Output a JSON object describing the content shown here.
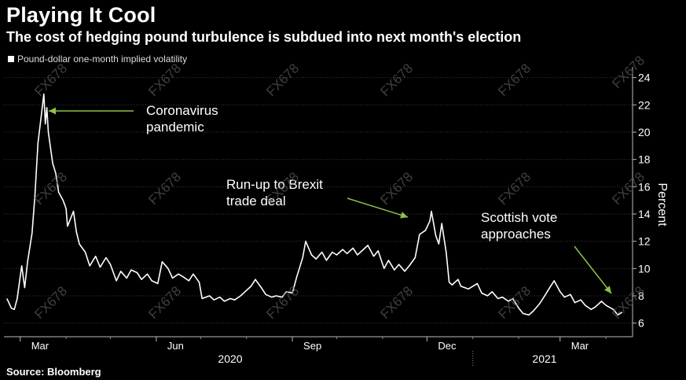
{
  "title": "Playing It Cool",
  "subtitle": "The cost of hedging pound turbulence is subdued into next month's election",
  "source": "Source: Bloomberg",
  "watermark": "FX678",
  "chart_data": {
    "type": "line",
    "title": "Playing It Cool",
    "subtitle": "The cost of hedging pound turbulence is subdued into next month's election",
    "ylabel": "Percent",
    "ylim": [
      5,
      24.5
    ],
    "yticks": [
      6,
      8,
      10,
      12,
      14,
      16,
      18,
      20,
      22,
      24
    ],
    "x_month_labels": [
      "Mar",
      "Jun",
      "Sep",
      "Dec",
      "Mar"
    ],
    "x_year_labels": [
      "2020",
      "2021"
    ],
    "grid": true,
    "legend": "top-left",
    "series": [
      {
        "name": "Pound-dollar one-month implied volatility",
        "color": "#ffffff",
        "points": [
          [
            "2020-02-21",
            7.8
          ],
          [
            "2020-02-24",
            7.1
          ],
          [
            "2020-02-26",
            7.0
          ],
          [
            "2020-02-28",
            7.8
          ],
          [
            "2020-03-02",
            10.2
          ],
          [
            "2020-03-04",
            8.6
          ],
          [
            "2020-03-06",
            10.5
          ],
          [
            "2020-03-09",
            12.6
          ],
          [
            "2020-03-11",
            15.4
          ],
          [
            "2020-03-13",
            19.2
          ],
          [
            "2020-03-15",
            21.0
          ],
          [
            "2020-03-17",
            22.8
          ],
          [
            "2020-03-18",
            20.6
          ],
          [
            "2020-03-19",
            21.8
          ],
          [
            "2020-03-20",
            20.0
          ],
          [
            "2020-03-23",
            17.7
          ],
          [
            "2020-03-25",
            17.0
          ],
          [
            "2020-03-27",
            15.6
          ],
          [
            "2020-03-30",
            15.0
          ],
          [
            "2020-04-01",
            14.4
          ],
          [
            "2020-04-02",
            13.1
          ],
          [
            "2020-04-06",
            14.2
          ],
          [
            "2020-04-08",
            12.7
          ],
          [
            "2020-04-10",
            11.8
          ],
          [
            "2020-04-14",
            11.2
          ],
          [
            "2020-04-17",
            10.2
          ],
          [
            "2020-04-21",
            10.9
          ],
          [
            "2020-04-24",
            10.1
          ],
          [
            "2020-04-28",
            10.8
          ],
          [
            "2020-05-01",
            10.3
          ],
          [
            "2020-05-05",
            9.1
          ],
          [
            "2020-05-08",
            9.8
          ],
          [
            "2020-05-12",
            9.3
          ],
          [
            "2020-05-15",
            9.9
          ],
          [
            "2020-05-19",
            9.7
          ],
          [
            "2020-05-22",
            9.2
          ],
          [
            "2020-05-26",
            9.6
          ],
          [
            "2020-05-29",
            9.1
          ],
          [
            "2020-06-02",
            8.9
          ],
          [
            "2020-06-05",
            10.5
          ],
          [
            "2020-06-09",
            10.0
          ],
          [
            "2020-06-12",
            9.3
          ],
          [
            "2020-06-16",
            9.6
          ],
          [
            "2020-06-19",
            9.4
          ],
          [
            "2020-06-23",
            9.1
          ],
          [
            "2020-06-26",
            9.6
          ],
          [
            "2020-06-30",
            9.0
          ],
          [
            "2020-07-02",
            7.8
          ],
          [
            "2020-07-07",
            8.0
          ],
          [
            "2020-07-10",
            7.7
          ],
          [
            "2020-07-14",
            7.9
          ],
          [
            "2020-07-17",
            7.6
          ],
          [
            "2020-07-21",
            7.8
          ],
          [
            "2020-07-24",
            7.7
          ],
          [
            "2020-07-28",
            8.0
          ],
          [
            "2020-07-31",
            8.3
          ],
          [
            "2020-08-04",
            8.7
          ],
          [
            "2020-08-07",
            9.2
          ],
          [
            "2020-08-11",
            8.6
          ],
          [
            "2020-08-14",
            8.1
          ],
          [
            "2020-08-18",
            7.9
          ],
          [
            "2020-08-21",
            8.0
          ],
          [
            "2020-08-25",
            7.9
          ],
          [
            "2020-08-28",
            8.3
          ],
          [
            "2020-09-01",
            8.2
          ],
          [
            "2020-09-04",
            9.4
          ],
          [
            "2020-09-08",
            10.8
          ],
          [
            "2020-09-10",
            12.0
          ],
          [
            "2020-09-14",
            11.0
          ],
          [
            "2020-09-17",
            10.7
          ],
          [
            "2020-09-21",
            11.2
          ],
          [
            "2020-09-24",
            10.6
          ],
          [
            "2020-09-28",
            11.2
          ],
          [
            "2020-10-01",
            11.0
          ],
          [
            "2020-10-05",
            11.4
          ],
          [
            "2020-10-08",
            11.1
          ],
          [
            "2020-10-12",
            11.5
          ],
          [
            "2020-10-15",
            11.0
          ],
          [
            "2020-10-19",
            11.4
          ],
          [
            "2020-10-22",
            11.7
          ],
          [
            "2020-10-26",
            10.9
          ],
          [
            "2020-10-29",
            11.3
          ],
          [
            "2020-11-02",
            10.0
          ],
          [
            "2020-11-05",
            10.6
          ],
          [
            "2020-11-09",
            9.9
          ],
          [
            "2020-11-12",
            10.3
          ],
          [
            "2020-11-16",
            9.8
          ],
          [
            "2020-11-19",
            10.2
          ],
          [
            "2020-11-23",
            10.8
          ],
          [
            "2020-11-26",
            12.5
          ],
          [
            "2020-11-30",
            12.8
          ],
          [
            "2020-12-03",
            13.5
          ],
          [
            "2020-12-04",
            14.2
          ],
          [
            "2020-12-07",
            12.4
          ],
          [
            "2020-12-09",
            11.8
          ],
          [
            "2020-12-11",
            13.3
          ],
          [
            "2020-12-14",
            11.2
          ],
          [
            "2020-12-16",
            9.0
          ],
          [
            "2020-12-18",
            8.8
          ],
          [
            "2020-12-22",
            9.2
          ],
          [
            "2020-12-24",
            8.7
          ],
          [
            "2020-12-29",
            8.5
          ],
          [
            "2021-01-04",
            8.9
          ],
          [
            "2021-01-07",
            8.2
          ],
          [
            "2021-01-11",
            8.0
          ],
          [
            "2021-01-14",
            8.3
          ],
          [
            "2021-01-18",
            7.8
          ],
          [
            "2021-01-21",
            7.9
          ],
          [
            "2021-01-25",
            7.6
          ],
          [
            "2021-01-28",
            7.8
          ],
          [
            "2021-02-01",
            7.1
          ],
          [
            "2021-02-04",
            6.7
          ],
          [
            "2021-02-08",
            6.6
          ],
          [
            "2021-02-11",
            6.9
          ],
          [
            "2021-02-15",
            7.4
          ],
          [
            "2021-02-18",
            7.9
          ],
          [
            "2021-02-22",
            8.6
          ],
          [
            "2021-02-25",
            9.1
          ],
          [
            "2021-03-01",
            8.3
          ],
          [
            "2021-03-04",
            7.9
          ],
          [
            "2021-03-08",
            8.1
          ],
          [
            "2021-03-11",
            7.5
          ],
          [
            "2021-03-15",
            7.7
          ],
          [
            "2021-03-18",
            7.3
          ],
          [
            "2021-03-22",
            7.0
          ],
          [
            "2021-03-25",
            7.2
          ],
          [
            "2021-03-29",
            7.6
          ],
          [
            "2021-04-01",
            7.3
          ],
          [
            "2021-04-06",
            7.0
          ],
          [
            "2021-04-09",
            6.6
          ],
          [
            "2021-04-12",
            6.8
          ]
        ]
      }
    ],
    "annotations": [
      {
        "text": [
          "Coronavirus",
          "pandemic"
        ],
        "points_to": [
          "2020-03-20",
          21.4
        ]
      },
      {
        "text": [
          "Run-up to Brexit",
          "trade deal"
        ],
        "points_to": [
          "2020-12-01",
          13.8
        ]
      },
      {
        "text": [
          "Scottish vote",
          "approaches"
        ],
        "points_to": [
          "2021-04-05",
          7.9
        ]
      }
    ]
  }
}
